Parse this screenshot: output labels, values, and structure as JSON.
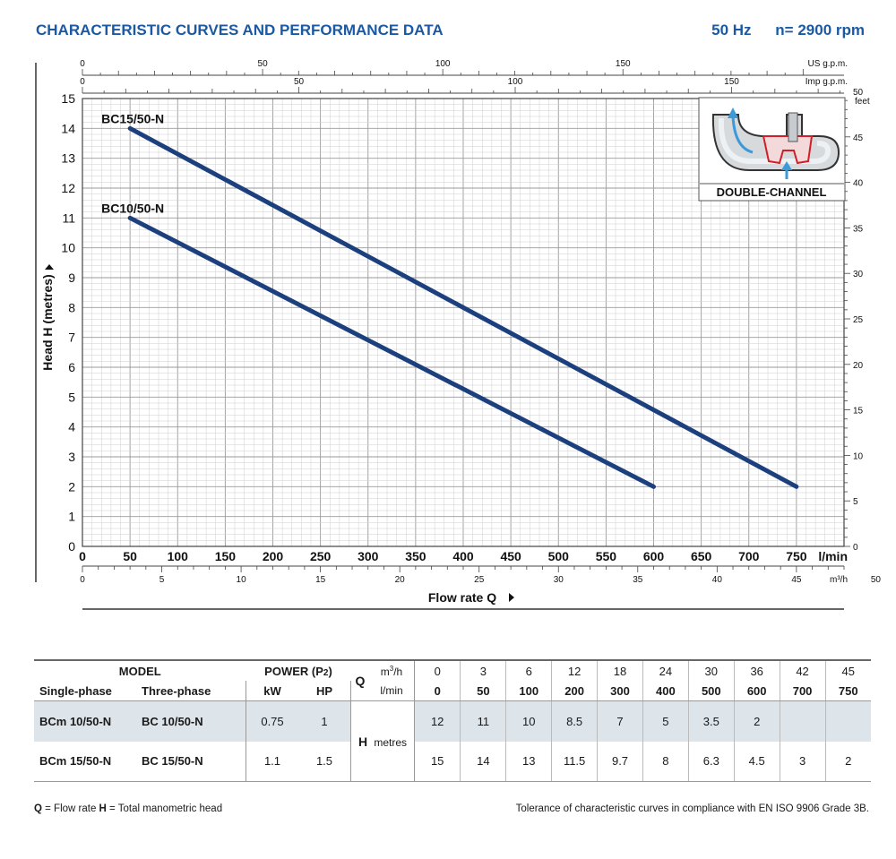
{
  "header": {
    "title": "CHARACTERISTIC CURVES AND PERFORMANCE DATA",
    "frequency": "50 Hz",
    "speed": "n= 2900 rpm"
  },
  "chart_data": {
    "type": "line",
    "ylabel": "Head H  (metres)",
    "xlabel": "Flow rate  Q",
    "ylim": [
      0,
      15
    ],
    "xlim": [
      0,
      800
    ],
    "y_ticks": [
      "0",
      "1",
      "2",
      "3",
      "4",
      "5",
      "6",
      "7",
      "8",
      "9",
      "10",
      "11",
      "12",
      "13",
      "14",
      "15"
    ],
    "x_ticks_lmin": [
      "0",
      "50",
      "100",
      "150",
      "200",
      "250",
      "300",
      "350",
      "400",
      "450",
      "500",
      "550",
      "600",
      "650",
      "700",
      "750"
    ],
    "x_unit_lmin": "l/min",
    "x_ticks_m3h": [
      "0",
      "5",
      "10",
      "15",
      "20",
      "25",
      "30",
      "35",
      "40",
      "45",
      "50"
    ],
    "x_unit_m3h": "m³/h",
    "x_ticks_usgpm": [
      "0",
      "50",
      "100",
      "150"
    ],
    "x_unit_usgpm": "US g.p.m.",
    "x_ticks_impgpm": [
      "0",
      "50",
      "100",
      "150"
    ],
    "x_unit_impgpm": "Imp g.p.m.",
    "y_ticks_feet": [
      "0",
      "5",
      "10",
      "15",
      "20",
      "25",
      "30",
      "35",
      "40",
      "45",
      "50"
    ],
    "y_unit_feet": "feet",
    "series": [
      {
        "name": "BC15/50-N",
        "x": [
          50,
          750
        ],
        "y": [
          14,
          2
        ]
      },
      {
        "name": "BC10/50-N",
        "x": [
          50,
          600
        ],
        "y": [
          11,
          2
        ]
      }
    ],
    "inset_label": "DOUBLE-CHANNEL"
  },
  "table": {
    "model_header": "MODEL",
    "power_header": "POWER (P",
    "power_sub": "2",
    "power_close": ")",
    "single_phase": "Single-phase",
    "three_phase": "Three-phase",
    "kw": "kW",
    "hp": "HP",
    "q_label": "Q",
    "m3h_unit": "m",
    "m3h_sup": "3",
    "m3h_rest": "/h",
    "lmin_unit": "l/min",
    "h_label": "H",
    "h_unit": "metres",
    "flow_m3h": [
      "0",
      "3",
      "6",
      "12",
      "18",
      "24",
      "30",
      "36",
      "42",
      "45"
    ],
    "flow_lmin": [
      "0",
      "50",
      "100",
      "200",
      "300",
      "400",
      "500",
      "600",
      "700",
      "750"
    ],
    "rows": [
      {
        "single": "BCm 10/50-N",
        "three": "BC 10/50-N",
        "kw": "0.75",
        "hp": "1",
        "heads": [
          "12",
          "11",
          "10",
          "8.5",
          "7",
          "5",
          "3.5",
          "2",
          "",
          ""
        ]
      },
      {
        "single": "BCm 15/50-N",
        "three": "BC 15/50-N",
        "kw": "1.1",
        "hp": "1.5",
        "heads": [
          "15",
          "14",
          "13",
          "11.5",
          "9.7",
          "8",
          "6.3",
          "4.5",
          "3",
          "2"
        ]
      }
    ]
  },
  "footer": {
    "q_abbr": "Q",
    "q_text": " = Flow rate   ",
    "h_abbr": "H",
    "h_text": " = Total manometric head",
    "tolerance": "Tolerance of characteristic curves in compliance with EN ISO 9906 Grade 3B."
  },
  "colors": {
    "brand": "#1b5aa3",
    "curve": "#1c3f7e",
    "grid": "#b8b8b8",
    "shade": "#dde4ea"
  }
}
